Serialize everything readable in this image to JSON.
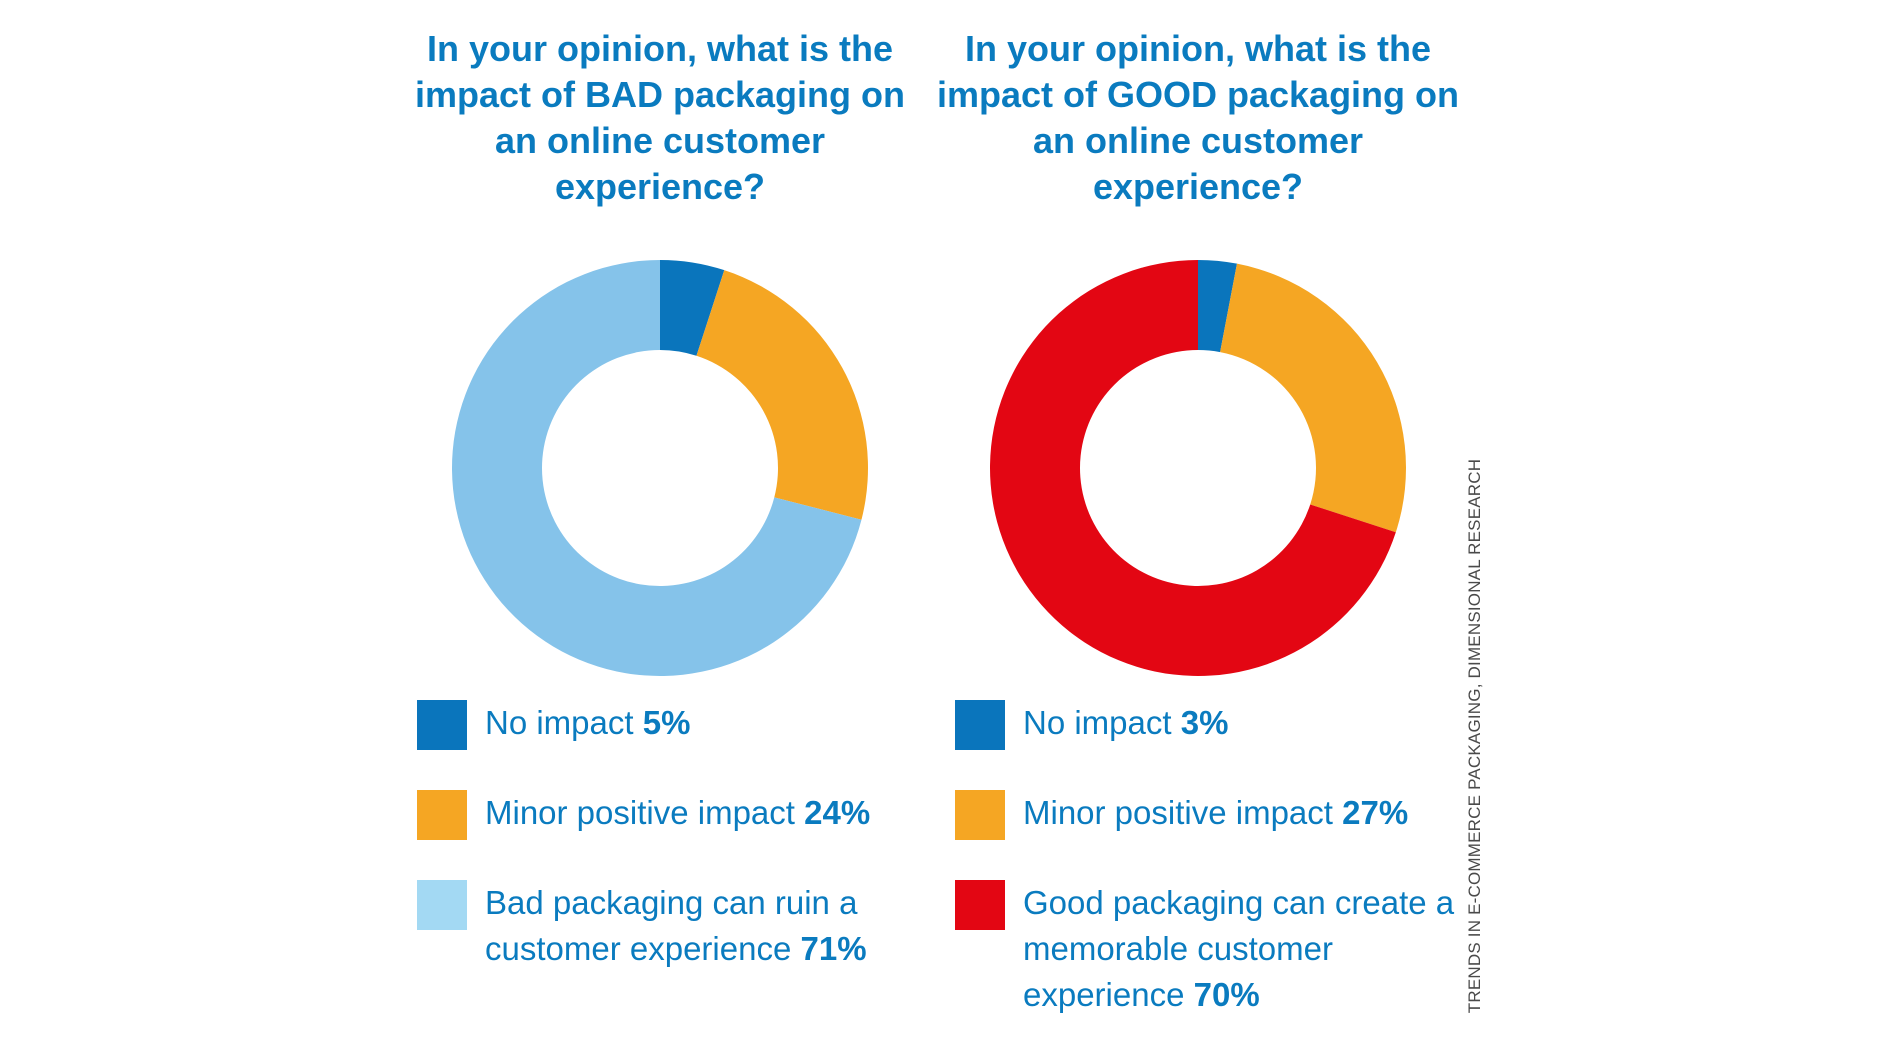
{
  "chart_data": [
    {
      "type": "pie",
      "donut": true,
      "title": "In your opinion, what is the impact of BAD packaging on an online customer experience?",
      "slices": [
        {
          "label": "No impact",
          "value": 5,
          "value_label": "5%",
          "color": "#0a75bc",
          "swatch": "#0a75bc"
        },
        {
          "label": "Minor positive impact",
          "value": 24,
          "value_label": "24%",
          "color": "#f5a623",
          "swatch": "#f5a623"
        },
        {
          "label": "Bad packaging can ruin a customer experience",
          "value": 71,
          "value_label": "71%",
          "color": "#85c3ea",
          "swatch": "#a3d9f3"
        }
      ]
    },
    {
      "type": "pie",
      "donut": true,
      "title": "In your opinion, what is the impact of GOOD packaging on an online customer experience?",
      "slices": [
        {
          "label": "No impact",
          "value": 3,
          "value_label": "3%",
          "color": "#0a75bc",
          "swatch": "#0a75bc"
        },
        {
          "label": "Minor positive impact",
          "value": 27,
          "value_label": "27%",
          "color": "#f5a623",
          "swatch": "#f5a623"
        },
        {
          "label": "Good packaging can create a memorable customer experience",
          "value": 70,
          "value_label": "70%",
          "color": "#e30613",
          "swatch": "#e30613"
        }
      ]
    }
  ],
  "source": "TRENDS IN E-COMMERCE PACKAGING, DIMENSIONAL RESEARCH"
}
